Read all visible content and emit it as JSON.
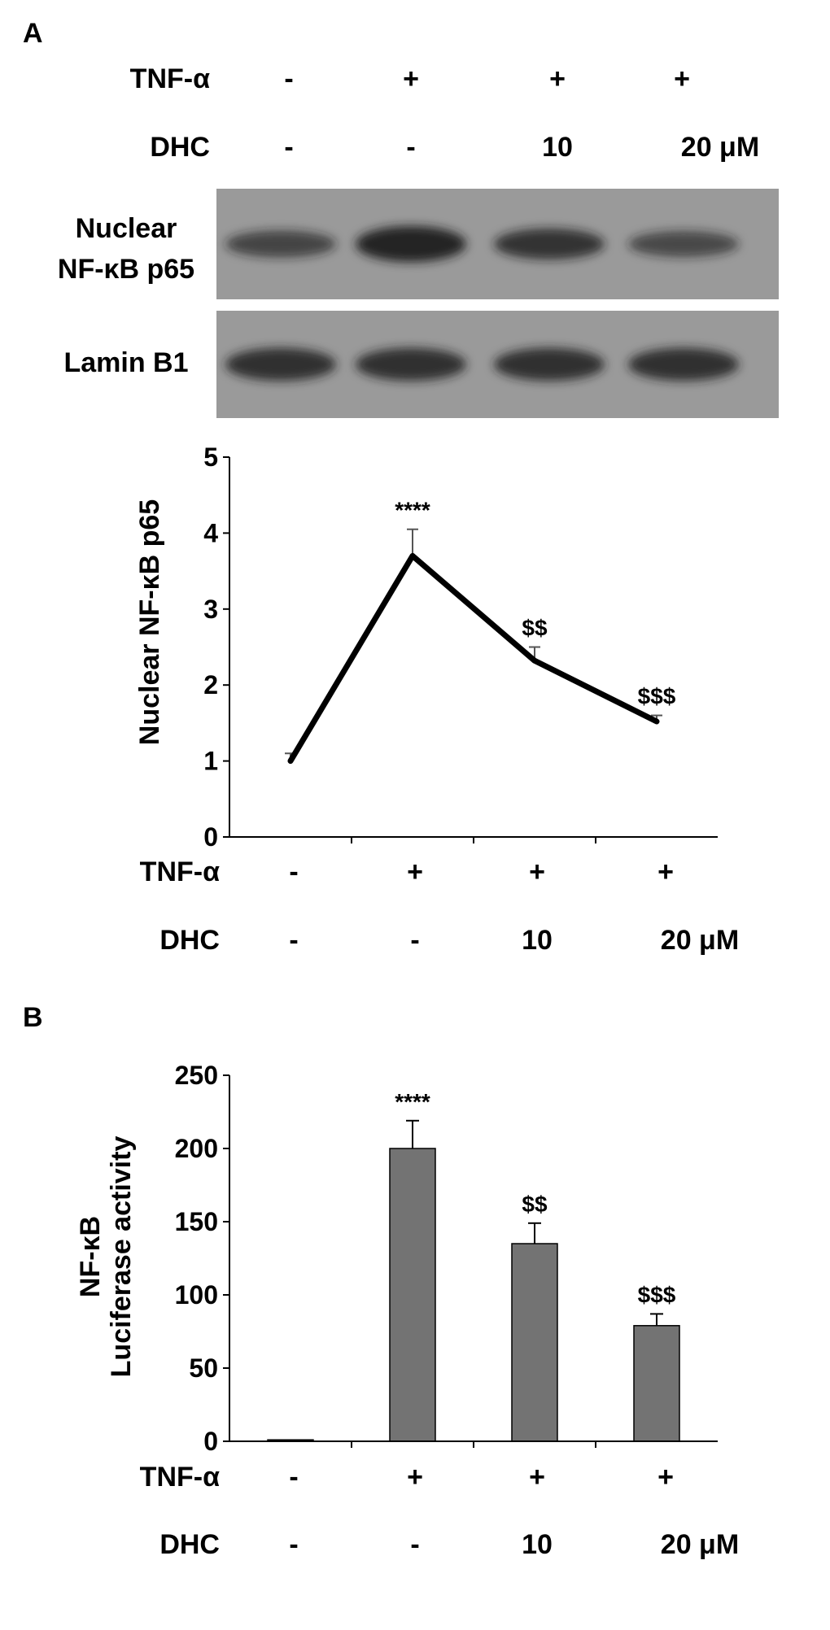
{
  "panel_a": {
    "panel_letter": "A",
    "top_rows": [
      {
        "label": "TNF-α",
        "values": [
          "-",
          "+",
          "+",
          "+"
        ]
      },
      {
        "label": "DHC",
        "values": [
          "-",
          "-",
          "10",
          "20 μM"
        ]
      }
    ],
    "blots": [
      {
        "label_lines": [
          "Nuclear",
          "NF-κB p65"
        ],
        "band_intensity": [
          0.55,
          1.0,
          0.75,
          0.5
        ]
      },
      {
        "label_lines": [
          "Lamin B1"
        ],
        "band_intensity": [
          0.85,
          0.85,
          0.85,
          0.85
        ]
      }
    ],
    "bottom_rows": [
      {
        "label": "TNF-α",
        "values": [
          "-",
          "+",
          "+",
          "+"
        ]
      },
      {
        "label": "DHC",
        "values": [
          "-",
          "-",
          "10",
          "20 μM"
        ]
      }
    ]
  },
  "panel_b": {
    "panel_letter": "B",
    "bottom_rows": [
      {
        "label": "TNF-α",
        "values": [
          "-",
          "+",
          "+",
          "+"
        ]
      },
      {
        "label": "DHC",
        "values": [
          "-",
          "-",
          "10",
          "20 μM"
        ]
      }
    ]
  },
  "chart_data": [
    {
      "type": "line",
      "ylabel": "Nuclear NF-κB p65",
      "ylim": [
        0,
        5
      ],
      "yticks": [
        "0",
        "1",
        "2",
        "3",
        "4",
        "5"
      ],
      "categories": [
        "1",
        "2",
        "3",
        "4"
      ],
      "values": [
        1.0,
        3.7,
        2.32,
        1.52
      ],
      "errors": [
        0.1,
        0.35,
        0.18,
        0.08
      ],
      "annotations": [
        "",
        "****",
        "$$",
        "$$$"
      ],
      "line_color": "#000000"
    },
    {
      "type": "bar",
      "ylabel": [
        "NF-κB",
        "Luciferase activity"
      ],
      "ylim": [
        0,
        250
      ],
      "yticks": [
        "0",
        "50",
        "100",
        "150",
        "200",
        "250"
      ],
      "categories": [
        "1",
        "2",
        "3",
        "4"
      ],
      "values": [
        1,
        200,
        135,
        79
      ],
      "errors": [
        0,
        19,
        14,
        8
      ],
      "annotations": [
        "",
        "****",
        "$$",
        "$$$"
      ],
      "bar_color": "#737373"
    }
  ]
}
